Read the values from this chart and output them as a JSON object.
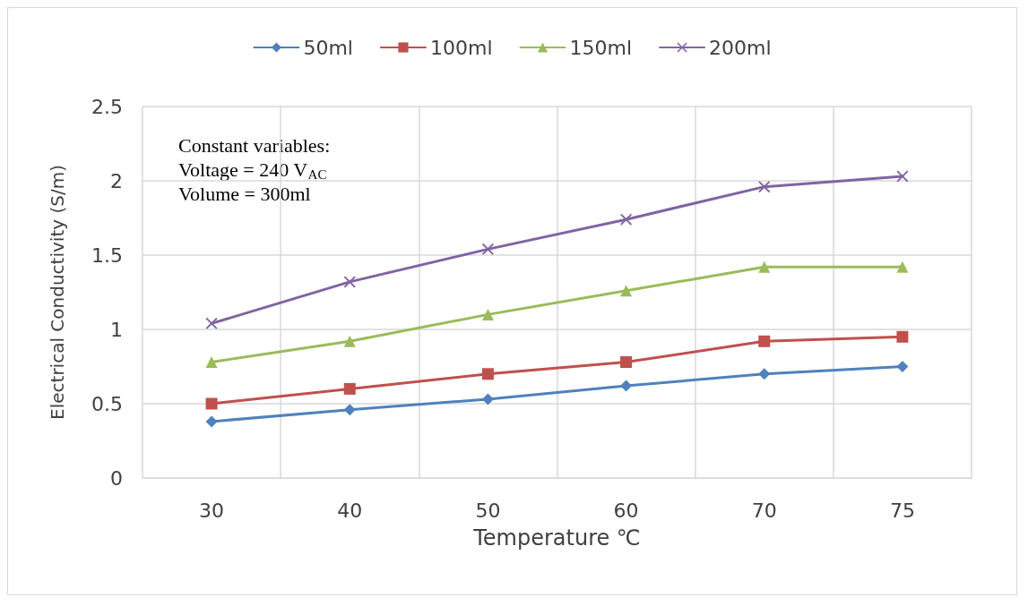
{
  "chart_data": {
    "type": "line",
    "xlabel": "Temperature ℃",
    "ylabel": "Electrical Conductivity (S/m)",
    "categories": [
      "30",
      "40",
      "50",
      "60",
      "70",
      "75"
    ],
    "series": [
      {
        "name": "50ml",
        "color": "#4f81bd",
        "marker": "diamond",
        "values": [
          0.38,
          0.46,
          0.53,
          0.62,
          0.7,
          0.75
        ]
      },
      {
        "name": "100ml",
        "color": "#c0504d",
        "marker": "square",
        "values": [
          0.5,
          0.6,
          0.7,
          0.78,
          0.92,
          0.95
        ]
      },
      {
        "name": "150ml",
        "color": "#9bbb59",
        "marker": "triangle",
        "values": [
          0.78,
          0.92,
          1.1,
          1.26,
          1.42,
          1.42
        ]
      },
      {
        "name": "200ml",
        "color": "#8064a2",
        "marker": "cross",
        "values": [
          1.04,
          1.32,
          1.54,
          1.74,
          1.96,
          2.03
        ]
      }
    ],
    "ylim": [
      0,
      2.5
    ],
    "yticks": [
      0,
      0.5,
      1,
      1.5,
      2,
      2.5
    ],
    "grid": true,
    "legend": "top",
    "annotations": [
      "Constant variables:",
      "Voltage = 240 V$_{AC}$",
      "Volume = 300ml"
    ]
  }
}
